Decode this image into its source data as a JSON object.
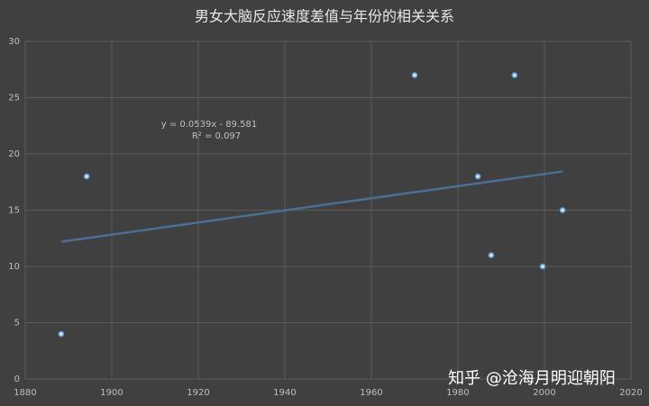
{
  "chart_data": {
    "type": "scatter",
    "title": "男女大脑反应速度差值与年份的相关关系",
    "x": [
      1888.3,
      1894.2,
      1970,
      1993.1,
      1984.6,
      1987.7,
      1999.6,
      2004.2
    ],
    "values": [
      4,
      18,
      27,
      27,
      18,
      11,
      10,
      15
    ],
    "color": "#5b9bd5",
    "xlim": [
      1880,
      2020
    ],
    "xticks": [
      1880,
      1900,
      1920,
      1940,
      1960,
      1980,
      2000,
      2020
    ],
    "ylim": [
      0,
      30
    ],
    "yticks": [
      0,
      5,
      10,
      15,
      20,
      25,
      30
    ],
    "grid": true,
    "trendline": {
      "equation": "y = 0.0539x - 89.581",
      "r2_label": "R² = 0.097",
      "slope": 0.0539,
      "intercept": -89.581,
      "color": "#4a6f91"
    },
    "watermark": "知乎 @沧海月明迎朝阳"
  }
}
